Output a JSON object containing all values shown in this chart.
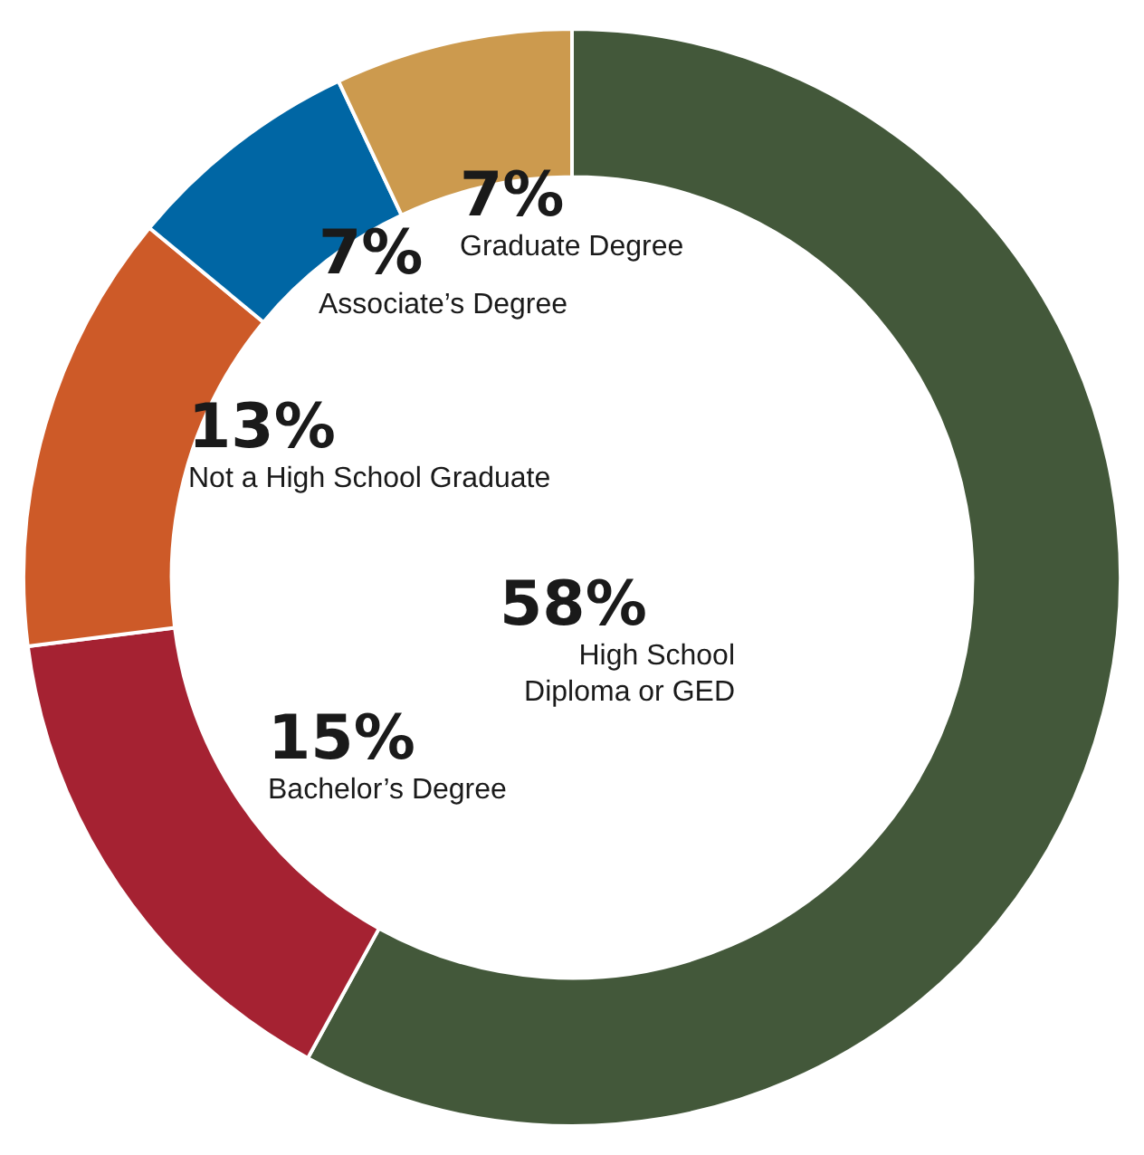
{
  "chart_data": {
    "type": "donut",
    "categories": [
      "High School Diploma or GED",
      "Bachelor’s Degree",
      "Not a High School Graduate",
      "Associate’s Degree",
      "Graduate Degree"
    ],
    "values": [
      58,
      15,
      13,
      7,
      7
    ],
    "colors": [
      "#43583a",
      "#a52232",
      "#cd5a28",
      "#0066a4",
      "#cc9a4e"
    ],
    "value_labels": [
      "58%",
      "15%",
      "13%",
      "7%",
      "7%"
    ],
    "legend": false
  }
}
